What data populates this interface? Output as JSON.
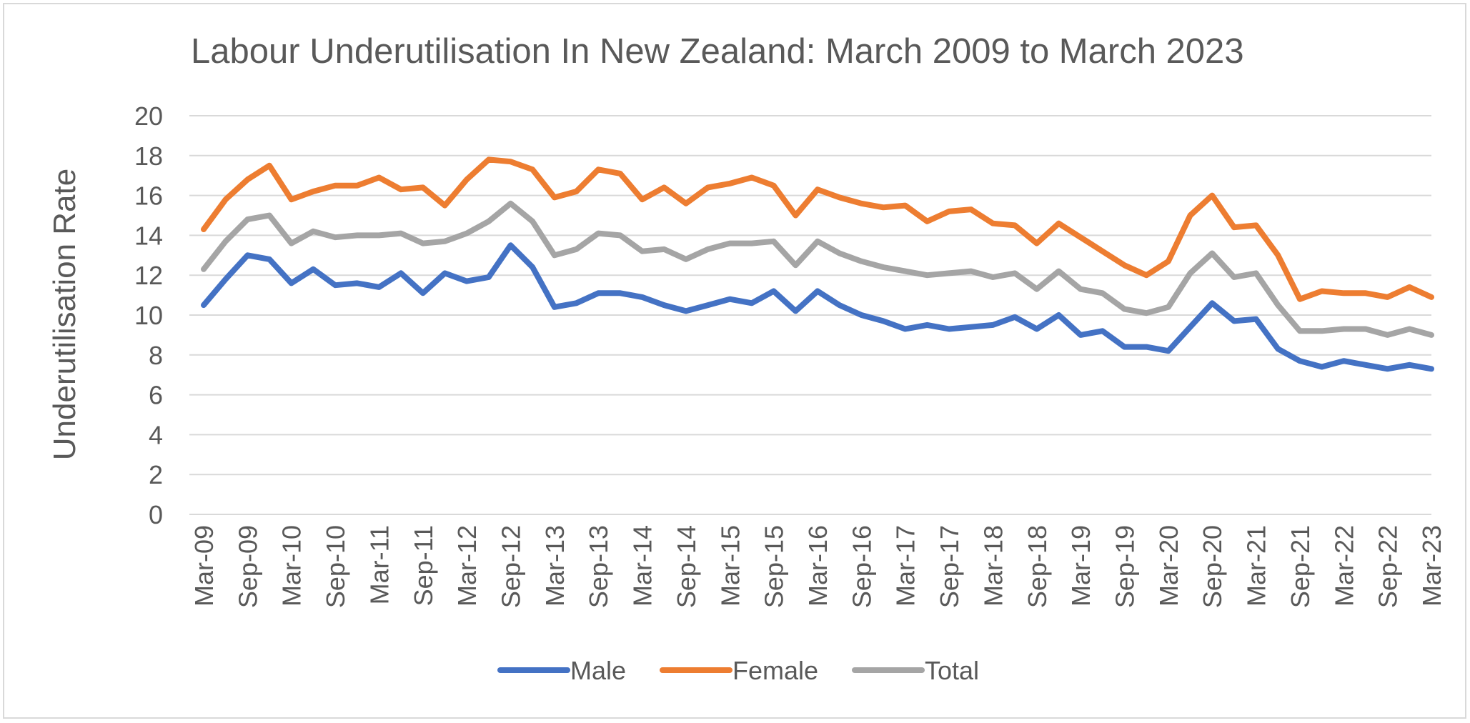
{
  "chart_data": {
    "type": "line",
    "title": "Labour Underutilisation In New Zealand: March 2009 to March 2023",
    "xlabel": "",
    "ylabel": "Underutilisation Rate",
    "ylim": [
      0,
      20
    ],
    "yticks": [
      0,
      2,
      4,
      6,
      8,
      10,
      12,
      14,
      16,
      18,
      20
    ],
    "grid": true,
    "legend_position": "bottom",
    "x": [
      "Mar-09",
      "Jun-09",
      "Sep-09",
      "Dec-09",
      "Mar-10",
      "Jun-10",
      "Sep-10",
      "Dec-10",
      "Mar-11",
      "Jun-11",
      "Sep-11",
      "Dec-11",
      "Mar-12",
      "Jun-12",
      "Sep-12",
      "Dec-12",
      "Mar-13",
      "Jun-13",
      "Sep-13",
      "Dec-13",
      "Mar-14",
      "Jun-14",
      "Sep-14",
      "Dec-14",
      "Mar-15",
      "Jun-15",
      "Sep-15",
      "Dec-15",
      "Mar-16",
      "Jun-16",
      "Sep-16",
      "Dec-16",
      "Mar-17",
      "Jun-17",
      "Sep-17",
      "Dec-17",
      "Mar-18",
      "Jun-18",
      "Sep-18",
      "Dec-18",
      "Mar-19",
      "Jun-19",
      "Sep-19",
      "Dec-19",
      "Mar-20",
      "Jun-20",
      "Sep-20",
      "Dec-20",
      "Mar-21",
      "Jun-21",
      "Sep-21",
      "Dec-21",
      "Mar-22",
      "Jun-22",
      "Sep-22",
      "Dec-22",
      "Mar-23"
    ],
    "x_tick_labels": [
      "Mar-09",
      "Sep-09",
      "Mar-10",
      "Sep-10",
      "Mar-11",
      "Sep-11",
      "Mar-12",
      "Sep-12",
      "Mar-13",
      "Sep-13",
      "Mar-14",
      "Sep-14",
      "Mar-15",
      "Sep-15",
      "Mar-16",
      "Sep-16",
      "Mar-17",
      "Sep-17",
      "Mar-18",
      "Sep-18",
      "Mar-19",
      "Sep-19",
      "Mar-20",
      "Sep-20",
      "Mar-21",
      "Sep-21",
      "Mar-22",
      "Sep-22",
      "Mar-23"
    ],
    "series": [
      {
        "name": "Male",
        "color": "#4472C4",
        "values": [
          10.5,
          11.8,
          13.0,
          12.8,
          11.6,
          12.3,
          11.5,
          11.6,
          11.4,
          12.1,
          11.1,
          12.1,
          11.7,
          11.9,
          13.5,
          12.4,
          10.4,
          10.6,
          11.1,
          11.1,
          10.9,
          10.5,
          10.2,
          10.5,
          10.8,
          10.6,
          11.2,
          10.2,
          11.2,
          10.5,
          10.0,
          9.7,
          9.3,
          9.5,
          9.3,
          9.4,
          9.5,
          9.9,
          9.3,
          10.0,
          9.0,
          9.2,
          8.4,
          8.4,
          8.2,
          9.4,
          10.6,
          9.7,
          9.8,
          8.3,
          7.7,
          7.4,
          7.7,
          7.5,
          7.3,
          7.5,
          7.3
        ]
      },
      {
        "name": "Female",
        "color": "#ED7D31",
        "values": [
          14.3,
          15.8,
          16.8,
          17.5,
          15.8,
          16.2,
          16.5,
          16.5,
          16.9,
          16.3,
          16.4,
          15.5,
          16.8,
          17.8,
          17.7,
          17.3,
          15.9,
          16.2,
          17.3,
          17.1,
          15.8,
          16.4,
          15.6,
          16.4,
          16.6,
          16.9,
          16.5,
          15.0,
          16.3,
          15.9,
          15.6,
          15.4,
          15.5,
          14.7,
          15.2,
          15.3,
          14.6,
          14.5,
          13.6,
          14.6,
          13.9,
          13.2,
          12.5,
          12.0,
          12.7,
          15.0,
          16.0,
          14.4,
          14.5,
          13.0,
          10.8,
          11.2,
          11.1,
          11.1,
          10.9,
          11.4,
          10.9
        ]
      },
      {
        "name": "Total",
        "color": "#A5A5A5",
        "values": [
          12.3,
          13.7,
          14.8,
          15.0,
          13.6,
          14.2,
          13.9,
          14.0,
          14.0,
          14.1,
          13.6,
          13.7,
          14.1,
          14.7,
          15.6,
          14.7,
          13.0,
          13.3,
          14.1,
          14.0,
          13.2,
          13.3,
          12.8,
          13.3,
          13.6,
          13.6,
          13.7,
          12.5,
          13.7,
          13.1,
          12.7,
          12.4,
          12.2,
          12.0,
          12.1,
          12.2,
          11.9,
          12.1,
          11.3,
          12.2,
          11.3,
          11.1,
          10.3,
          10.1,
          10.4,
          12.1,
          13.1,
          11.9,
          12.1,
          10.5,
          9.2,
          9.2,
          9.3,
          9.3,
          9.0,
          9.3,
          9.0
        ]
      }
    ]
  }
}
